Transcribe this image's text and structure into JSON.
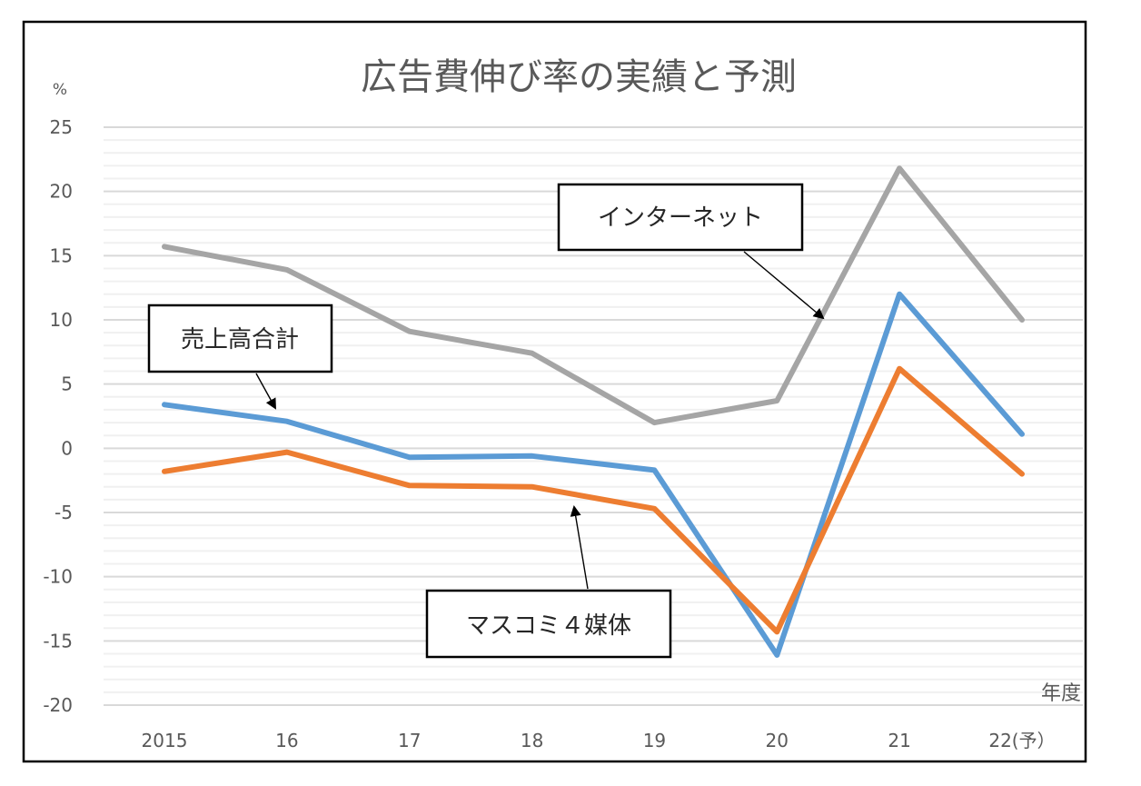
{
  "chart_data": {
    "type": "line",
    "title": "広告費伸び率の実績と予測",
    "ylabel": "%",
    "xlabel": "年度",
    "ylim": [
      -20,
      25
    ],
    "y_major_step": 5,
    "y_minor_step": 1,
    "y_ticks": [
      "25",
      "20",
      "15",
      "10",
      "5",
      "0",
      "-5",
      "-10",
      "-15",
      "-20"
    ],
    "y_tick_values": [
      25,
      20,
      15,
      10,
      5,
      0,
      -5,
      -10,
      -15,
      -20
    ],
    "categories": [
      "2015",
      "16",
      "17",
      "18",
      "19",
      "20",
      "21",
      "22(予）"
    ],
    "grid": true,
    "legend": "none",
    "series": [
      {
        "name": "インターネット",
        "color": "#a5a5a5",
        "values": [
          15.7,
          13.9,
          9.1,
          7.4,
          2.0,
          3.7,
          21.8,
          10.0
        ]
      },
      {
        "name": "売上高合計",
        "color": "#5b9bd5",
        "values": [
          3.4,
          2.1,
          -0.7,
          -0.6,
          -1.7,
          -16.1,
          12.0,
          1.1
        ]
      },
      {
        "name": "マスコミ４媒体",
        "color": "#ed7d31",
        "values": [
          -1.8,
          -0.3,
          -2.9,
          -3.0,
          -4.7,
          -14.3,
          6.2,
          -2.0
        ]
      }
    ],
    "annotations": [
      {
        "text": "インターネット",
        "series": "インターネット",
        "points_to_category": "20"
      },
      {
        "text": "売上高合計",
        "series": "売上高合計",
        "points_to_category": "16"
      },
      {
        "text": "マスコミ４媒体",
        "series": "マスコミ４媒体",
        "points_to_category": "18"
      }
    ]
  }
}
